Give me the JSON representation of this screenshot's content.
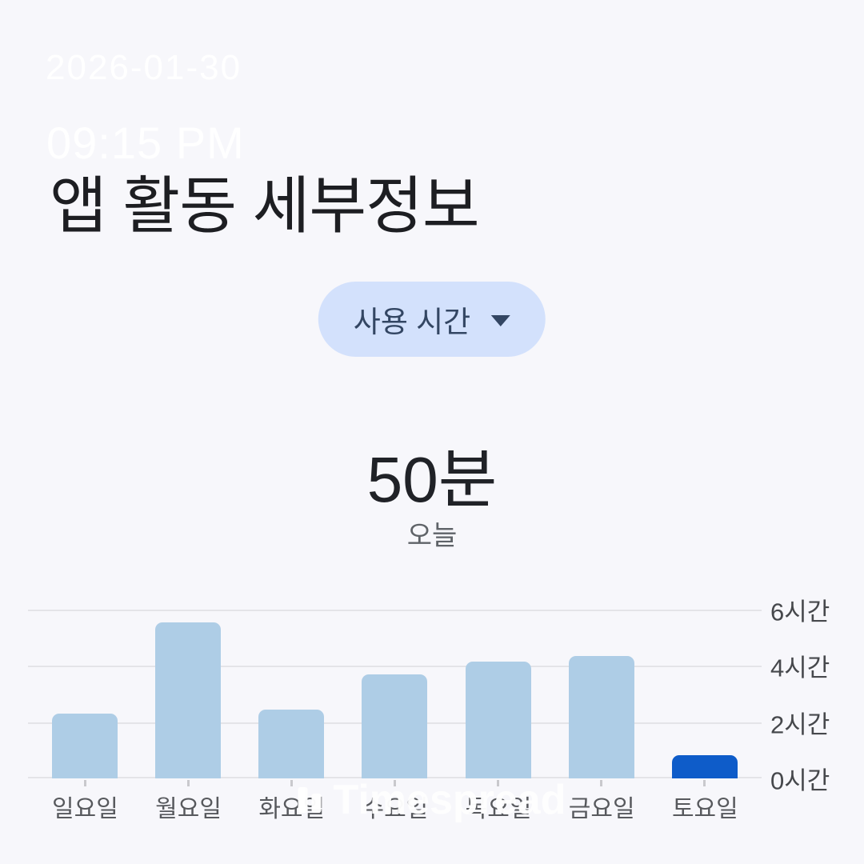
{
  "watermarks": {
    "date": "2026-01-30",
    "time": "09:15 PM",
    "brand": "Timespread"
  },
  "header": {
    "title": "앱 활동 세부정보"
  },
  "filter_dropdown": {
    "selected": "사용 시간"
  },
  "summary": {
    "value": "50분",
    "caption": "오늘"
  },
  "chart_data": {
    "type": "bar",
    "title": "",
    "xlabel": "",
    "ylabel": "",
    "categories": [
      "일요일",
      "월요일",
      "화요일",
      "수요일",
      "목요일",
      "금요일",
      "토요일"
    ],
    "values": [
      2.3,
      5.55,
      2.45,
      3.7,
      4.15,
      4.35,
      0.83
    ],
    "unit": "시간",
    "ylim": [
      0,
      6
    ],
    "ytick_labels": [
      "6시간",
      "4시간",
      "2시간",
      "0시간"
    ],
    "highlight_index": 6,
    "grid": true,
    "yaxis_position": "right",
    "colors": {
      "bar": "#aecde6",
      "highlight": "#0e5cc9",
      "gridline": "#e4e4e8"
    }
  }
}
